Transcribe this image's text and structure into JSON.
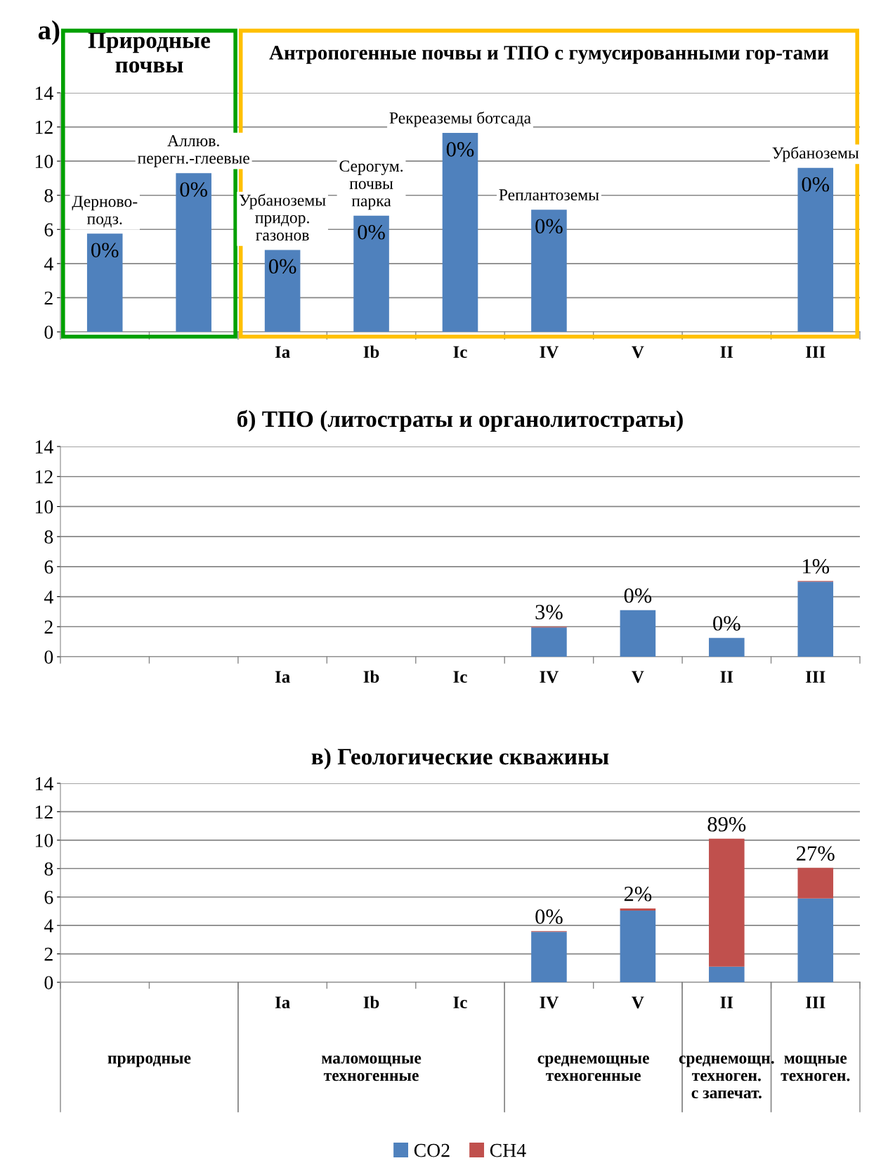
{
  "chart_data": [
    {
      "type": "bar",
      "stacked": true,
      "title": "а)",
      "categories": [
        null,
        null,
        "Ia",
        "Ib",
        "Ic",
        "IV",
        "V",
        "II",
        "III"
      ],
      "series": [
        {
          "color": "#4f81bd",
          "values": [
            5.75,
            9.3,
            4.8,
            6.8,
            11.65,
            7.15,
            null,
            null,
            9.6
          ]
        },
        {
          "color": "#c0504d",
          "values": [
            0,
            0,
            0,
            0,
            0,
            0,
            null,
            null,
            0
          ]
        }
      ],
      "ylim": [
        0,
        14
      ],
      "yticks": [
        0,
        2,
        4,
        6,
        8,
        10,
        12,
        14
      ],
      "grid": "y",
      "annotations": [
        "Природные\nпочвы",
        "Антропогенные почвы и ТПО с гумусированными гор-тами",
        "Дерново-\nподз.",
        "Аллюв.\nперегн.-глеевые",
        "Урбаноземы\nпридор.\nгазонов",
        "Серогум.\nпочвы\nпарка",
        "Рекреаземы ботсада",
        "Реплантоземы",
        "Урбаноземы",
        "0%",
        "0%",
        "0%",
        "0%",
        "0%",
        "0%",
        "0%"
      ]
    },
    {
      "type": "bar",
      "stacked": true,
      "title": "б) ТПО (литостраты и органолитостраты)",
      "categories": [
        null,
        null,
        "Ia",
        "Ib",
        "Ic",
        "IV",
        "V",
        "II",
        "III"
      ],
      "series": [
        {
          "color": "#4f81bd",
          "values": [
            null,
            null,
            null,
            null,
            null,
            1.95,
            3.1,
            1.25,
            5.0
          ]
        },
        {
          "color": "#c0504d",
          "values": [
            null,
            null,
            null,
            null,
            null,
            0.05,
            0,
            0,
            0.05
          ]
        }
      ],
      "ylim": [
        0,
        14
      ],
      "yticks": [
        0,
        2,
        4,
        6,
        8,
        10,
        12,
        14
      ],
      "grid": "y",
      "annotations": [
        "3%",
        "0%",
        "0%",
        "1%"
      ]
    },
    {
      "type": "bar",
      "stacked": true,
      "title": "в) Геологические скважины",
      "categories": [
        null,
        null,
        "Ia",
        "Ib",
        "Ic",
        "IV",
        "V",
        "II",
        "III"
      ],
      "series": [
        {
          "name": "CO2",
          "color": "#4f81bd",
          "values": [
            null,
            null,
            null,
            null,
            null,
            3.55,
            5.05,
            1.1,
            5.9
          ]
        },
        {
          "name": "CH4",
          "color": "#c0504d",
          "values": [
            null,
            null,
            null,
            null,
            null,
            0.05,
            0.15,
            9.0,
            2.15
          ]
        }
      ],
      "ylim": [
        0,
        14
      ],
      "yticks": [
        0,
        2,
        4,
        6,
        8,
        10,
        12,
        14
      ],
      "grid": "y",
      "legend": "bottom",
      "annotations": [
        "0%",
        "2%",
        "89%",
        "27%",
        "природные",
        "маломощные\nтехногенные",
        "среднемощные\nтехногенные",
        "среднемощн.\nтехноген.\nс запечат.",
        "мощные\nтехноген."
      ]
    }
  ]
}
